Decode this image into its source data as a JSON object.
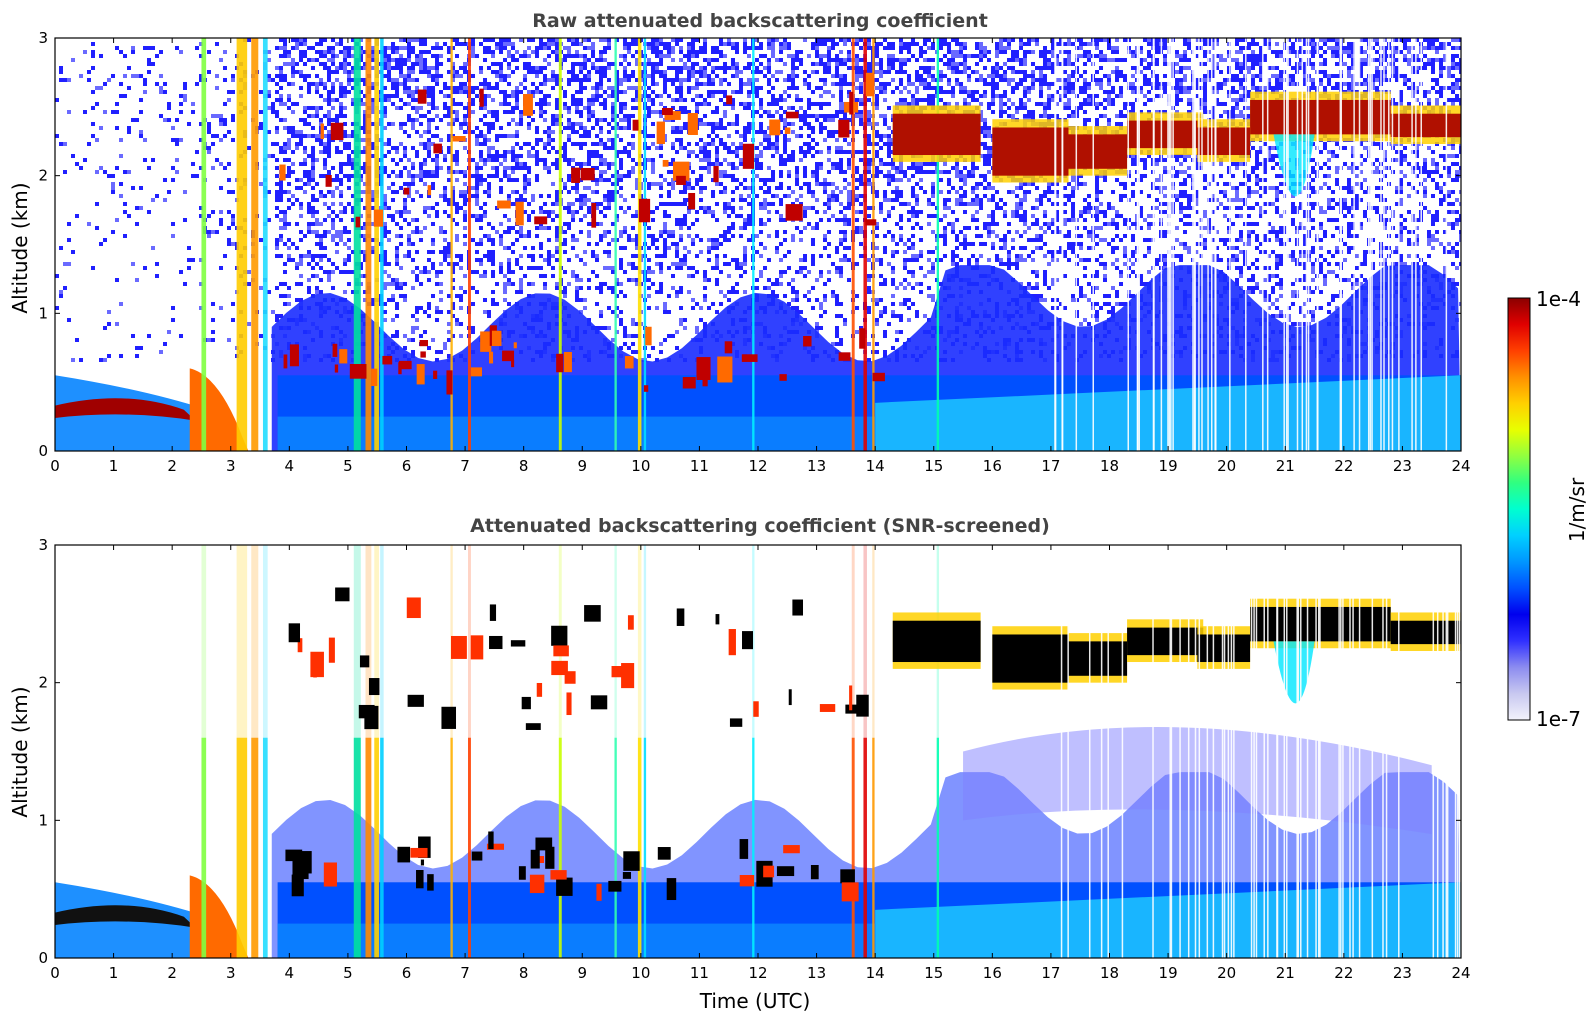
{
  "chart_data": [
    {
      "type": "heatmap",
      "title": "Raw attenuated backscattering coefficient",
      "xlabel": "",
      "ylabel": "Altitude (km)",
      "xlim": [
        0,
        24
      ],
      "ylim": [
        0,
        3
      ],
      "xticks": [
        "0",
        "1",
        "2",
        "3",
        "4",
        "5",
        "6",
        "7",
        "8",
        "9",
        "10",
        "11",
        "12",
        "13",
        "14",
        "15",
        "16",
        "17",
        "18",
        "19",
        "20",
        "21",
        "22",
        "23",
        "24"
      ],
      "yticks": [
        "0",
        "1",
        "2",
        "3"
      ],
      "screened": false
    },
    {
      "type": "heatmap",
      "title": "Attenuated backscattering coefficient (SNR-screened)",
      "xlabel": "Time (UTC)",
      "ylabel": "Altitude (km)",
      "xlim": [
        0,
        24
      ],
      "ylim": [
        0,
        3
      ],
      "xticks": [
        "0",
        "1",
        "2",
        "3",
        "4",
        "5",
        "6",
        "7",
        "8",
        "9",
        "10",
        "11",
        "12",
        "13",
        "14",
        "15",
        "16",
        "17",
        "18",
        "19",
        "20",
        "21",
        "22",
        "23",
        "24"
      ],
      "yticks": [
        "0",
        "1",
        "2",
        "3"
      ],
      "screened": true
    }
  ],
  "colorbar": {
    "label": "1/m/sr",
    "max_label": "1e-4",
    "min_label": "1e-7",
    "scale": "log",
    "colors": [
      "#f2f2fb",
      "#c8c8f0",
      "#8c8cf0",
      "#3030ff",
      "#0000ee",
      "#0050ff",
      "#0096ff",
      "#00d0ff",
      "#00ffd0",
      "#30ff80",
      "#90ff40",
      "#e8ff00",
      "#ffd000",
      "#ff9000",
      "#ff4000",
      "#e00000",
      "#8b0000"
    ]
  },
  "layers": {
    "cloud_layer_top": "2.1–2.6 km cloud layer, 14–24 UTC",
    "boundary_layer": "0–0.7 km aerosol layer"
  }
}
